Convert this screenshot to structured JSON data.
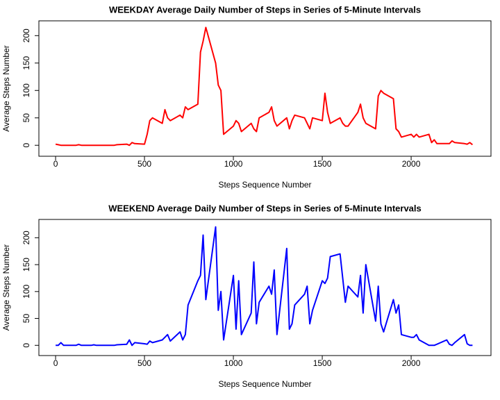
{
  "chart_data": [
    {
      "type": "line",
      "title": "WEEKDAY Average Daily Number of Steps in Series of 5-Minute Intervals",
      "x_label": "Steps Sequence Number",
      "y_label": "Average Steps Number",
      "x": [
        0,
        15,
        30,
        45,
        100,
        115,
        130,
        145,
        200,
        215,
        230,
        245,
        300,
        315,
        330,
        345,
        400,
        415,
        430,
        445,
        500,
        515,
        530,
        545,
        600,
        615,
        630,
        645,
        700,
        715,
        730,
        745,
        800,
        815,
        830,
        845,
        900,
        915,
        930,
        945,
        1000,
        1015,
        1030,
        1045,
        1100,
        1115,
        1130,
        1145,
        1200,
        1215,
        1230,
        1245,
        1300,
        1315,
        1330,
        1345,
        1400,
        1415,
        1430,
        1445,
        1500,
        1515,
        1530,
        1545,
        1600,
        1615,
        1630,
        1645,
        1700,
        1715,
        1730,
        1745,
        1800,
        1815,
        1830,
        1845,
        1900,
        1915,
        1930,
        1945,
        2000,
        2015,
        2030,
        2045,
        2100,
        2115,
        2130,
        2145,
        2200,
        2215,
        2230,
        2245,
        2300,
        2315,
        2330,
        2345
      ],
      "values": [
        2,
        1,
        0,
        0,
        0,
        0,
        1,
        0,
        0,
        0,
        0,
        0,
        0,
        0,
        0,
        1,
        2,
        0,
        5,
        3,
        2,
        20,
        45,
        50,
        40,
        65,
        50,
        45,
        55,
        50,
        70,
        65,
        75,
        170,
        190,
        215,
        150,
        110,
        100,
        20,
        35,
        45,
        40,
        25,
        40,
        30,
        25,
        50,
        60,
        70,
        45,
        35,
        50,
        30,
        45,
        55,
        50,
        40,
        30,
        50,
        45,
        95,
        60,
        40,
        50,
        40,
        35,
        35,
        60,
        75,
        50,
        40,
        30,
        90,
        100,
        95,
        85,
        30,
        25,
        15,
        20,
        15,
        20,
        15,
        20,
        5,
        10,
        3,
        3,
        3,
        8,
        5,
        3,
        2,
        5,
        1
      ],
      "color": "#ff0000",
      "xlim": [
        -94,
        2449
      ],
      "ylim": [
        -20,
        227
      ],
      "xticks": [
        0,
        500,
        1000,
        1500,
        2000
      ],
      "yticks": [
        0,
        50,
        100,
        150,
        200
      ]
    },
    {
      "type": "line",
      "title": "WEEKEND Average Daily Number of Steps in Series of 5-Minute Intervals",
      "x_label": "Steps Sequence Number",
      "y_label": "Average Steps Number",
      "x": [
        0,
        15,
        30,
        45,
        100,
        115,
        130,
        145,
        200,
        215,
        230,
        245,
        300,
        315,
        330,
        345,
        400,
        415,
        430,
        445,
        500,
        515,
        530,
        545,
        600,
        615,
        630,
        645,
        700,
        715,
        730,
        745,
        800,
        815,
        830,
        845,
        900,
        915,
        930,
        945,
        1000,
        1015,
        1030,
        1045,
        1100,
        1115,
        1130,
        1145,
        1200,
        1215,
        1230,
        1245,
        1300,
        1315,
        1330,
        1345,
        1400,
        1415,
        1430,
        1445,
        1500,
        1515,
        1530,
        1545,
        1600,
        1615,
        1630,
        1645,
        1700,
        1715,
        1730,
        1745,
        1800,
        1815,
        1830,
        1845,
        1900,
        1915,
        1930,
        1945,
        2000,
        2015,
        2030,
        2045,
        2100,
        2115,
        2130,
        2145,
        2200,
        2215,
        2230,
        2245,
        2300,
        2315,
        2330,
        2345
      ],
      "values": [
        0,
        0,
        5,
        0,
        0,
        0,
        2,
        0,
        0,
        1,
        0,
        0,
        0,
        0,
        0,
        1,
        2,
        10,
        0,
        5,
        3,
        2,
        8,
        5,
        10,
        15,
        20,
        8,
        25,
        10,
        20,
        75,
        120,
        130,
        205,
        85,
        220,
        65,
        100,
        10,
        130,
        30,
        120,
        20,
        60,
        155,
        40,
        80,
        110,
        95,
        140,
        20,
        180,
        30,
        40,
        75,
        95,
        110,
        40,
        65,
        120,
        115,
        125,
        165,
        170,
        125,
        80,
        110,
        90,
        130,
        60,
        150,
        45,
        110,
        40,
        25,
        85,
        60,
        75,
        20,
        15,
        15,
        20,
        10,
        0,
        0,
        0,
        2,
        10,
        2,
        0,
        5,
        20,
        3,
        0,
        0
      ],
      "color": "#0000ff",
      "xlim": [
        -94,
        2449
      ],
      "ylim": [
        -19,
        234
      ],
      "xticks": [
        0,
        500,
        1000,
        1500,
        2000
      ],
      "yticks": [
        0,
        50,
        100,
        150,
        200
      ]
    }
  ]
}
